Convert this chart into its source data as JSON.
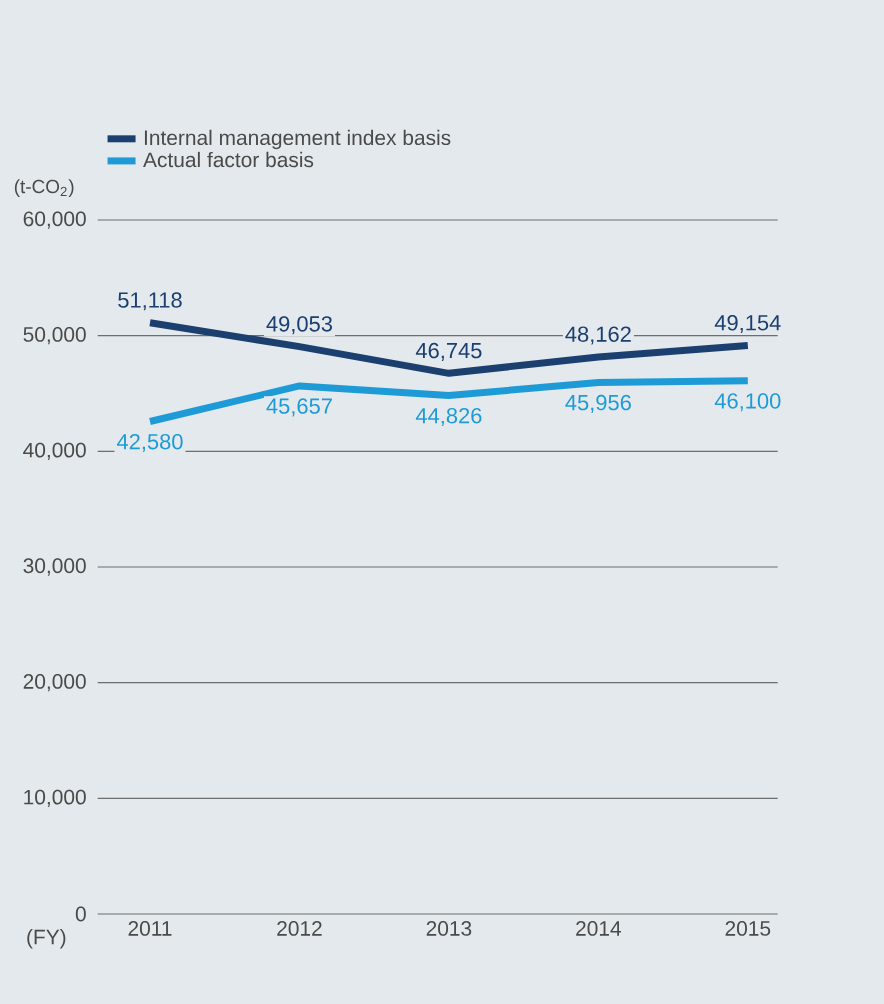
{
  "chart_data": {
    "type": "line",
    "ylabel": "(t-CO$_{2}$)",
    "xlabel": "(FY)",
    "categories": [
      "2011",
      "2012",
      "2013",
      "2014",
      "2015"
    ],
    "series": [
      {
        "name": "Internal management index basis",
        "color": "#1b3f6e",
        "values": [
          51118,
          49053,
          46745,
          48162,
          49154
        ],
        "value_labels": [
          "51,118",
          "49,053",
          "46,745",
          "48,162",
          "49,154"
        ]
      },
      {
        "name": "Actual factor basis",
        "color": "#1e9bd7",
        "values": [
          42580,
          45657,
          44826,
          45956,
          46100
        ],
        "value_labels": [
          "42,580",
          "45,657",
          "44,826",
          "45,956",
          "46,100"
        ]
      }
    ],
    "ylim": [
      0,
      60000
    ],
    "yticks": [
      {
        "value": 0,
        "label": "0"
      },
      {
        "value": 10000,
        "label": "10,000"
      },
      {
        "value": 20000,
        "label": "20,000"
      },
      {
        "value": 30000,
        "label": "30,000"
      },
      {
        "value": 40000,
        "label": "40,000"
      },
      {
        "value": 50000,
        "label": "50,000"
      },
      {
        "value": 60000,
        "label": "60,000"
      }
    ],
    "grid": "y",
    "legend": "top left",
    "marker": "none",
    "line_style": "solid"
  }
}
